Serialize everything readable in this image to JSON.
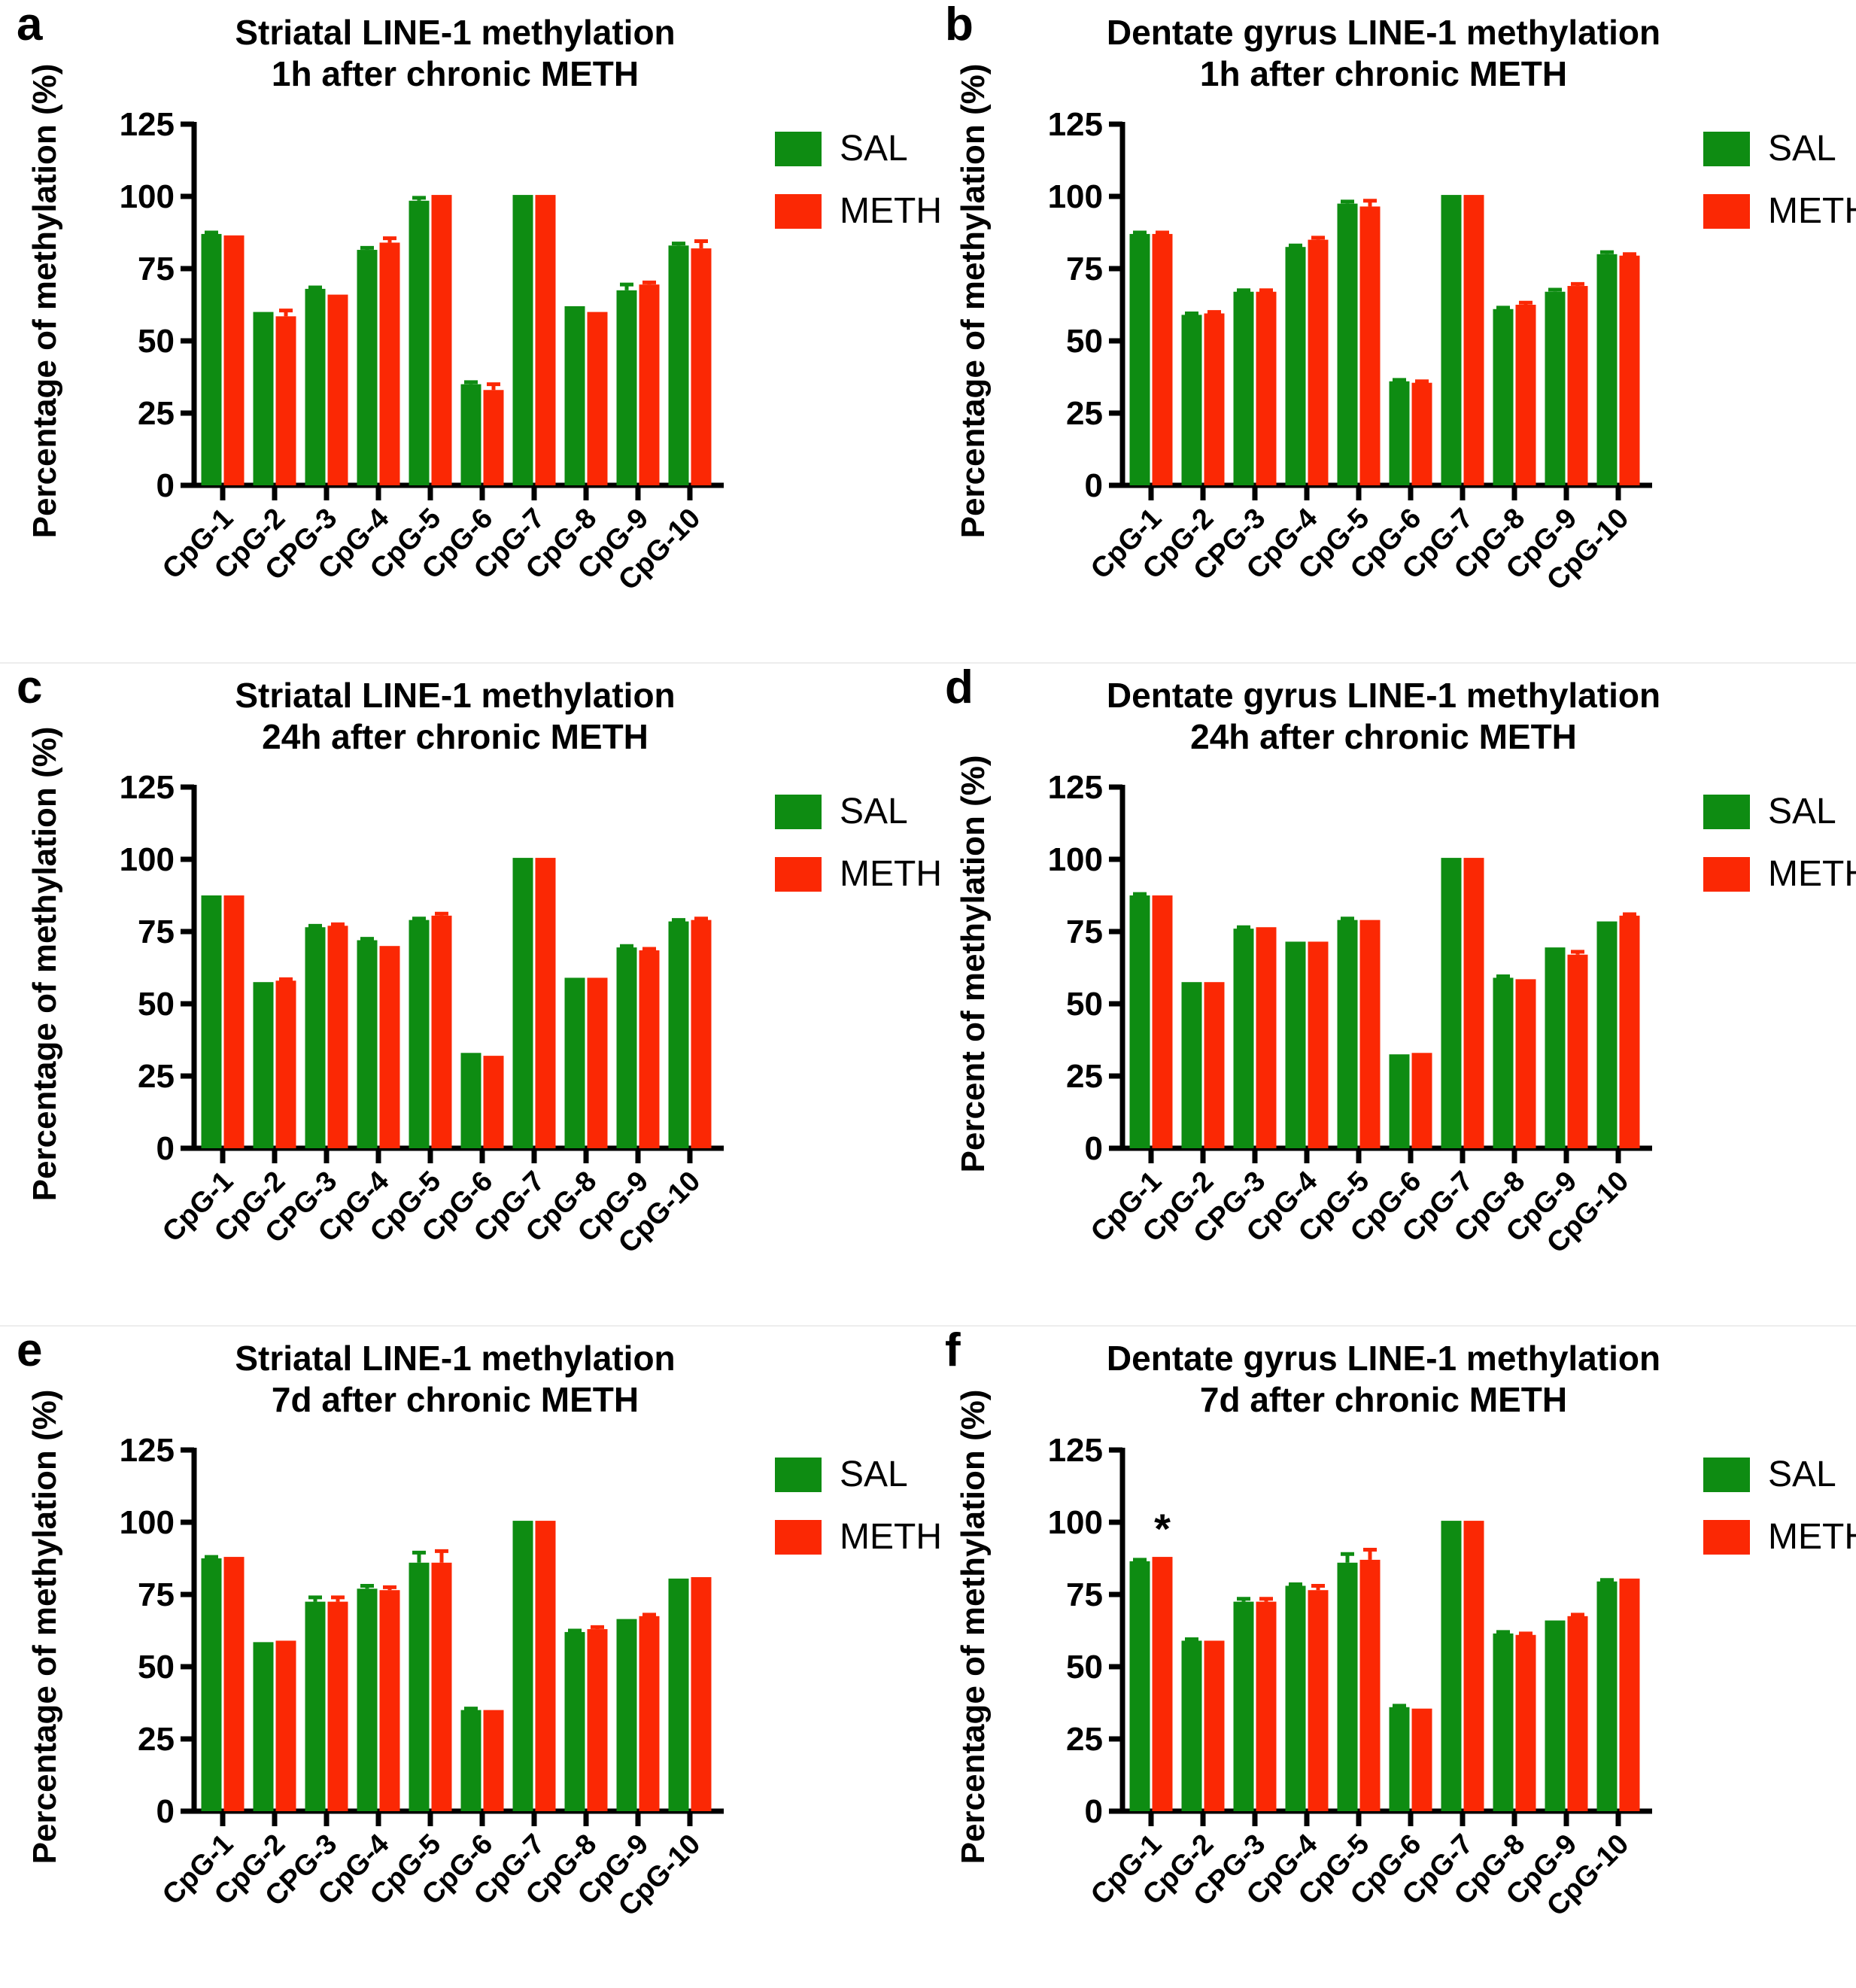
{
  "figure": {
    "background": "#ffffff",
    "axis_color": "#000000",
    "separator_color": "#ededed",
    "legend": {
      "sal_label": "SAL",
      "meth_label": "METH"
    },
    "colors": {
      "sal": "#0E8C12",
      "meth": "#FB2804"
    }
  },
  "chart_data": [
    {
      "type": "bar",
      "letter": "a",
      "title_line1": "Striatal LINE-1 methylation",
      "title_line2": "1h after chronic METH",
      "ylabel": "Percentage of methylation (%)",
      "xlabel": "",
      "ylim": [
        0,
        125
      ],
      "yticks": [
        0,
        25,
        50,
        75,
        100,
        125
      ],
      "grid": false,
      "legend_position": "right",
      "categories": [
        "CpG-1",
        "CpG-2",
        "CPG-3",
        "CpG-4",
        "CpG-5",
        "CpG-6",
        "CpG-7",
        "CpG-8",
        "CpG-9",
        "CpG-10"
      ],
      "series": [
        {
          "name": "SAL",
          "color": "#0E8C12",
          "values": [
            87,
            60,
            68,
            81.5,
            98.5,
            35,
            100.5,
            62,
            67.5,
            83
          ],
          "errors": [
            0.5,
            0,
            0.5,
            0.7,
            1,
            0.7,
            0,
            0,
            2,
            0.7
          ]
        },
        {
          "name": "METH",
          "color": "#FB2804",
          "values": [
            86.5,
            58.5,
            66,
            84,
            100.5,
            33,
            100.5,
            60,
            69.5,
            82
          ],
          "errors": [
            0,
            2,
            0,
            1.5,
            0,
            2,
            0,
            0,
            0.7,
            2.5
          ]
        }
      ],
      "annotations": []
    },
    {
      "type": "bar",
      "letter": "b",
      "title_line1": "Dentate gyrus LINE-1 methylation",
      "title_line2": "1h after chronic METH",
      "ylabel": "Percentage of methylation (%)",
      "xlabel": "",
      "ylim": [
        0,
        125
      ],
      "yticks": [
        0,
        25,
        50,
        75,
        100,
        125
      ],
      "grid": false,
      "legend_position": "right",
      "categories": [
        "CpG-1",
        "CpG-2",
        "CPG-3",
        "CpG-4",
        "CpG-5",
        "CpG-6",
        "CpG-7",
        "CpG-8",
        "CpG-9",
        "CpG-10"
      ],
      "series": [
        {
          "name": "SAL",
          "color": "#0E8C12",
          "values": [
            87,
            59,
            67,
            82.5,
            97.5,
            36,
            100.5,
            61,
            67,
            80
          ],
          "errors": [
            0.5,
            0.5,
            0.5,
            0.5,
            0.7,
            0.5,
            0,
            0.5,
            0.7,
            0.7
          ]
        },
        {
          "name": "METH",
          "color": "#FB2804",
          "values": [
            87,
            59.5,
            67,
            85,
            96.5,
            35.5,
            100.5,
            62.5,
            69,
            79.5
          ],
          "errors": [
            0.5,
            0.5,
            0.5,
            0.7,
            2,
            0.5,
            0,
            0.7,
            0.7,
            0.5
          ]
        }
      ],
      "annotations": []
    },
    {
      "type": "bar",
      "letter": "c",
      "title_line1": "Striatal LINE-1 methylation",
      "title_line2": "24h after chronic METH",
      "ylabel": "Percentage of methylation (%)",
      "xlabel": "",
      "ylim": [
        0,
        125
      ],
      "yticks": [
        0,
        25,
        50,
        75,
        100,
        125
      ],
      "grid": false,
      "legend_position": "right",
      "categories": [
        "CpG-1",
        "CpG-2",
        "CPG-3",
        "CpG-4",
        "CpG-5",
        "CpG-6",
        "CpG-7",
        "CpG-8",
        "CpG-9",
        "CpG-10"
      ],
      "series": [
        {
          "name": "SAL",
          "color": "#0E8C12",
          "values": [
            87.5,
            57.5,
            76.5,
            72,
            79,
            33,
            100.5,
            59,
            69.5,
            78.5
          ],
          "errors": [
            0,
            0,
            0.5,
            0.5,
            0.5,
            0,
            0,
            0,
            0.5,
            0.5
          ]
        },
        {
          "name": "METH",
          "color": "#FB2804",
          "values": [
            87.5,
            58,
            77,
            70,
            80.5,
            32,
            100.5,
            59,
            68.5,
            79
          ],
          "errors": [
            0,
            0.5,
            0.5,
            0,
            0.7,
            0,
            0,
            0,
            0.5,
            0.5
          ]
        }
      ],
      "annotations": []
    },
    {
      "type": "bar",
      "letter": "d",
      "title_line1": "Dentate gyrus LINE-1 methylation",
      "title_line2": "24h after chronic METH",
      "ylabel": "Percent of methylation (%)",
      "xlabel": "",
      "ylim": [
        0,
        125
      ],
      "yticks": [
        0,
        25,
        50,
        75,
        100,
        125
      ],
      "grid": false,
      "legend_position": "right",
      "categories": [
        "CpG-1",
        "CpG-2",
        "CPG-3",
        "CpG-4",
        "CpG-5",
        "CpG-6",
        "CpG-7",
        "CpG-8",
        "CpG-9",
        "CpG-10"
      ],
      "series": [
        {
          "name": "SAL",
          "color": "#0E8C12",
          "values": [
            87.5,
            57.5,
            76,
            71.5,
            79,
            32.5,
            100.5,
            59,
            69.5,
            78.5
          ],
          "errors": [
            0.5,
            0,
            0.5,
            0,
            0.5,
            0,
            0,
            0.5,
            0,
            0
          ]
        },
        {
          "name": "METH",
          "color": "#FB2804",
          "values": [
            87.5,
            57.5,
            76.5,
            71.5,
            79,
            33,
            100.5,
            58.5,
            67,
            80.5
          ],
          "errors": [
            0,
            0,
            0,
            0,
            0,
            0,
            0,
            0,
            1,
            0.5
          ]
        }
      ],
      "annotations": []
    },
    {
      "type": "bar",
      "letter": "e",
      "title_line1": "Striatal LINE-1 methylation",
      "title_line2": "7d after chronic METH",
      "ylabel": "Percentage of methylation (%)",
      "xlabel": "",
      "ylim": [
        0,
        125
      ],
      "yticks": [
        0,
        25,
        50,
        75,
        100,
        125
      ],
      "grid": false,
      "legend_position": "right",
      "categories": [
        "CpG-1",
        "CpG-2",
        "CPG-3",
        "CpG-4",
        "CpG-5",
        "CpG-6",
        "CpG-7",
        "CpG-8",
        "CpG-9",
        "CpG-10"
      ],
      "series": [
        {
          "name": "SAL",
          "color": "#0E8C12",
          "values": [
            87.5,
            58.5,
            72.5,
            77,
            86,
            35,
            100.5,
            62,
            66.5,
            80.5
          ],
          "errors": [
            0.5,
            0,
            1.5,
            1,
            3.5,
            0.5,
            0,
            0.5,
            0,
            0
          ]
        },
        {
          "name": "METH",
          "color": "#FB2804",
          "values": [
            88,
            59,
            72.5,
            76.5,
            86,
            35,
            100.5,
            63,
            67.5,
            81
          ],
          "errors": [
            0,
            0,
            1.5,
            1,
            4,
            0,
            0,
            0.7,
            0.5,
            0
          ]
        }
      ],
      "annotations": []
    },
    {
      "type": "bar",
      "letter": "f",
      "title_line1": "Dentate gyrus LINE-1 methylation",
      "title_line2": "7d after chronic METH",
      "ylabel": "Percentage of methylation (%)",
      "xlabel": "",
      "ylim": [
        0,
        125
      ],
      "yticks": [
        0,
        25,
        50,
        75,
        100,
        125
      ],
      "grid": false,
      "legend_position": "right",
      "categories": [
        "CpG-1",
        "CpG-2",
        "CPG-3",
        "CpG-4",
        "CpG-5",
        "CpG-6",
        "CpG-7",
        "CpG-8",
        "CpG-9",
        "CpG-10"
      ],
      "series": [
        {
          "name": "SAL",
          "color": "#0E8C12",
          "values": [
            86.5,
            59,
            72.5,
            78,
            86,
            36,
            100.5,
            61.5,
            66,
            79.5
          ],
          "errors": [
            0.5,
            0.5,
            1,
            0.5,
            3,
            0.5,
            0,
            0.5,
            0,
            0.5
          ]
        },
        {
          "name": "METH",
          "color": "#FB2804",
          "values": [
            88,
            59,
            72.5,
            76.5,
            87,
            35.5,
            100.5,
            61,
            67.5,
            80.5
          ],
          "errors": [
            0,
            0,
            1,
            1.5,
            3.5,
            0,
            0,
            0.5,
            0.5,
            0
          ]
        }
      ],
      "annotations": [
        {
          "text": "*",
          "category_index": 0,
          "series_index": 1
        }
      ]
    }
  ]
}
